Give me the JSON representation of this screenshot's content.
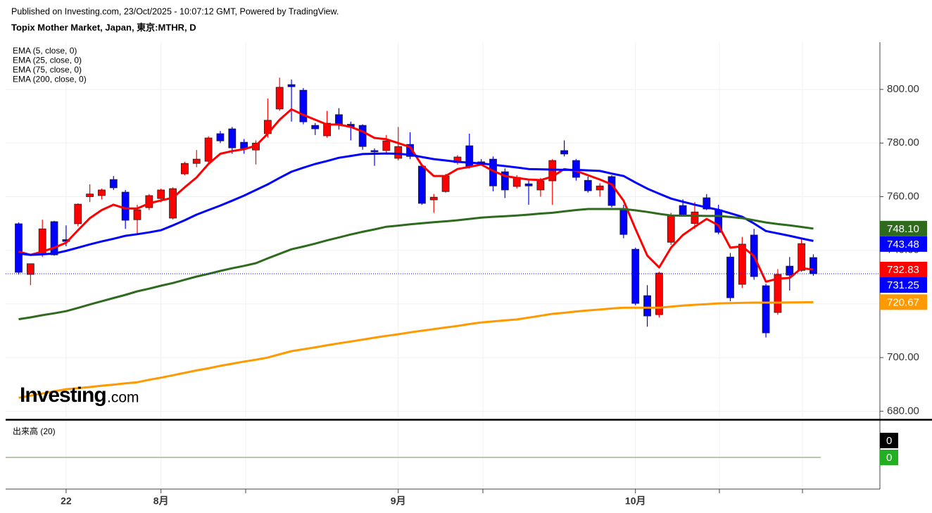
{
  "header": {
    "published": "Published on Investing.com, 23/Oct/2025 - 10:07:12 GMT, Powered by TradingView.",
    "logo": "Investing",
    "logo_suffix": ".com"
  },
  "chart_data": [
    {
      "type": "candlestick",
      "title": "Topix Mother Market, Japan, 東京:MTHR, D",
      "categories": [
        null,
        null,
        null,
        null,
        "22",
        null,
        null,
        null,
        null,
        null,
        null,
        null,
        "8月",
        null,
        null,
        null,
        null,
        null,
        null,
        null,
        null,
        null,
        null,
        null,
        null,
        null,
        null,
        null,
        null,
        null,
        null,
        null,
        "9月",
        null,
        null,
        null,
        null,
        null,
        null,
        null,
        null,
        null,
        null,
        null,
        null,
        null,
        null,
        null,
        null,
        null,
        null,
        null,
        "10月",
        null,
        null,
        null,
        null,
        null,
        null,
        null,
        null,
        null,
        null,
        null,
        null,
        null,
        null,
        null
      ],
      "open": [
        749.9,
        731,
        738.3,
        750.7,
        744,
        749.9,
        760,
        760.4,
        766.4,
        761.7,
        751.4,
        755.9,
        759.3,
        752,
        768.5,
        772.4,
        773.2,
        783.5,
        785.3,
        780.3,
        777.4,
        783.5,
        792.7,
        801.8,
        799.7,
        786.6,
        782.7,
        790.6,
        787,
        786.6,
        777.2,
        777.2,
        774.3,
        779.5,
        771.4,
        758.8,
        761.9,
        772.7,
        779,
        773,
        774,
        769.3,
        763.8,
        764.8,
        762.5,
        765.9,
        777.2,
        773.5,
        766.1,
        762.5,
        767.5,
        755.4,
        740.4,
        723.1,
        716,
        743,
        756.7,
        750,
        759.6,
        755.1,
        737.5,
        727.3,
        745.7,
        726.8,
        716.8,
        734.1,
        732.5,
        737.3
      ],
      "high": [
        750.4,
        735,
        751.4,
        751,
        749.3,
        757.5,
        764.6,
        763,
        767.7,
        762.5,
        757,
        761,
        763,
        763.5,
        773,
        777.4,
        782.5,
        784.5,
        786,
        781.5,
        781,
        796.6,
        804.4,
        803.7,
        800.5,
        787.5,
        792,
        793,
        788,
        787,
        778,
        783,
        786,
        784,
        772,
        761,
        768.5,
        775.5,
        783.5,
        774,
        775,
        770.5,
        768,
        766,
        767,
        774,
        781,
        774,
        767.5,
        765,
        768,
        757,
        741,
        727,
        732,
        754,
        759,
        758,
        761,
        757,
        739,
        745,
        748,
        727.5,
        733,
        737.5,
        744.5,
        738.5
      ],
      "low": [
        731,
        727,
        737.5,
        738,
        741.5,
        749,
        758,
        759,
        762.5,
        748,
        746,
        755,
        758,
        751.5,
        768,
        771,
        772,
        780,
        776,
        776,
        772,
        782,
        792,
        788,
        787,
        783,
        782,
        785,
        781,
        777.5,
        771.5,
        776,
        773.5,
        774,
        757,
        754,
        761.5,
        772,
        770.5,
        772,
        762,
        759.5,
        763,
        757,
        760,
        757,
        775,
        766,
        761.5,
        760,
        756,
        744.5,
        719.5,
        711.5,
        715,
        742,
        752.5,
        748,
        755,
        746,
        721,
        726,
        729,
        707.5,
        716,
        725,
        732,
        730.5
      ],
      "close": [
        731.8,
        735,
        748,
        738.3,
        743.3,
        757.2,
        761,
        762.5,
        763.3,
        751.2,
        755.1,
        760.4,
        762.5,
        763,
        772.4,
        774,
        781.9,
        780.8,
        778.2,
        778,
        780,
        788.5,
        800.8,
        801,
        787.9,
        785.3,
        787.4,
        786.6,
        786,
        778.7,
        776.7,
        780.8,
        778.7,
        775,
        757.5,
        759.8,
        767.7,
        774.8,
        771.1,
        772.8,
        764,
        762.5,
        767.2,
        764,
        765.9,
        773.5,
        775.9,
        767.2,
        762.2,
        764,
        756.7,
        745.9,
        720.2,
        715.5,
        731.5,
        753,
        753.3,
        754.3,
        755.4,
        746.7,
        722.3,
        742.3,
        730.2,
        709.2,
        731,
        730.7,
        742.5,
        731.25
      ],
      "up_color": "#ff0000",
      "down_color": "#0000ff",
      "series": [
        {
          "name": "EMA (5, close, 0)",
          "color": "#ff0000",
          "values": [
            739.5,
            738.3,
            739.5,
            741,
            742.8,
            747.5,
            752,
            755,
            757,
            755.6,
            755.6,
            757.5,
            758.6,
            759.6,
            763.5,
            767.2,
            772.2,
            776,
            777,
            777.7,
            779,
            783.5,
            788.7,
            792.6,
            790.5,
            788.7,
            786.9,
            786.9,
            786,
            784.3,
            781.9,
            781.4,
            780,
            778.5,
            771.7,
            767.7,
            767.7,
            770.3,
            771.1,
            772,
            769.6,
            767.7,
            767,
            766.4,
            766.2,
            767.5,
            770.3,
            769.6,
            768,
            766.4,
            764.6,
            758.5,
            748,
            738,
            733.6,
            741,
            745.7,
            748.8,
            751.7,
            749.3,
            741,
            741.5,
            737.8,
            728.3,
            729.4,
            729.7,
            733.3,
            732.83
          ]
        },
        {
          "name": "EMA (25, close, 0)",
          "color": "#0000ff",
          "values": [
            738.8,
            738.3,
            738.5,
            738.8,
            739.8,
            741,
            742.2,
            743.3,
            744.3,
            745.4,
            746,
            746.7,
            747.5,
            749.3,
            751.2,
            753.3,
            755,
            756.7,
            758.5,
            760.4,
            762.5,
            764.6,
            767,
            769.3,
            770.8,
            772.2,
            773.3,
            774.5,
            775.2,
            775.9,
            776,
            776.1,
            776,
            775.6,
            774.8,
            774,
            773.5,
            773,
            772.7,
            772.4,
            771.9,
            771.4,
            770.9,
            770.3,
            770.2,
            770.1,
            770,
            770,
            769.8,
            769.6,
            768.6,
            767.7,
            765.3,
            763,
            761.1,
            759.3,
            758.1,
            757,
            756,
            755.1,
            753.8,
            752.5,
            750,
            747.2,
            746.3,
            745.4,
            744.4,
            743.48
          ]
        },
        {
          "name": "EMA (75, close, 0)",
          "color": "#2e6b1e",
          "values": [
            714.3,
            715,
            715.8,
            716.5,
            717.3,
            718.5,
            719.8,
            721,
            722.2,
            723.4,
            724.7,
            725.7,
            726.8,
            727.8,
            729,
            730.2,
            731.2,
            732.3,
            733.3,
            734.2,
            735.2,
            737,
            738.7,
            740.4,
            741.4,
            742.5,
            743.7,
            744.8,
            745.9,
            746.9,
            747.8,
            748.8,
            749.2,
            749.7,
            750.1,
            750.5,
            750.8,
            751.2,
            751.7,
            752.2,
            752.5,
            752.7,
            753,
            753.3,
            753.7,
            754,
            754.5,
            755,
            755.4,
            755.4,
            755.4,
            755.4,
            754.9,
            754.3,
            753.6,
            753,
            752.9,
            752.9,
            752.8,
            752.8,
            752.4,
            752,
            751.2,
            750.4,
            749.8,
            749.3,
            748.7,
            748.1
          ],
          "value_labels": [
            null,
            null,
            null,
            null,
            null,
            null,
            null,
            null,
            null,
            null,
            null,
            null,
            null,
            null,
            null,
            null,
            null,
            null,
            null,
            null,
            null,
            null,
            null,
            null,
            null,
            null,
            null,
            null,
            null,
            null,
            null,
            null,
            null,
            null,
            null,
            null,
            null,
            null,
            null,
            null,
            null,
            null,
            null,
            null,
            null,
            null,
            null,
            null,
            null,
            null,
            null,
            null,
            null,
            null,
            null,
            null,
            null,
            null,
            null,
            null,
            null,
            null,
            null,
            null,
            null,
            null,
            null,
            "748.10"
          ]
        },
        {
          "name": "EMA (200, close, 0)",
          "color": "#ff9900",
          "values": [
            685,
            685.8,
            686.6,
            687.4,
            688.2,
            688.6,
            689,
            689.5,
            689.9,
            690.4,
            690.8,
            691.7,
            692.5,
            693.4,
            694.3,
            695.2,
            696,
            696.9,
            697.7,
            698.5,
            699.2,
            700,
            701.2,
            702.4,
            703.1,
            703.8,
            704.6,
            705.3,
            706,
            706.7,
            707.4,
            708.1,
            708.7,
            709.4,
            710,
            710.6,
            711.2,
            711.8,
            712.5,
            713.1,
            713.5,
            713.9,
            714.2,
            714.9,
            715.6,
            716.3,
            716.7,
            717.2,
            717.6,
            717.9,
            718.3,
            718.6,
            718.6,
            718.6,
            718.6,
            719,
            719.4,
            719.7,
            719.9,
            720.2,
            720.3,
            720.4,
            720.5,
            720.5,
            720.5,
            720.55,
            720.6,
            720.67
          ]
        }
      ],
      "ylim": [
        677.2,
        817.6
      ],
      "yticks": [
        {
          "value": 680,
          "label": "680.00"
        },
        {
          "value": 700,
          "label": "700.00"
        },
        {
          "value": 720,
          "label": "720.00"
        },
        {
          "value": 740,
          "label": "740.00"
        },
        {
          "value": 760,
          "label": "760.00"
        },
        {
          "value": 780,
          "label": "780.00"
        },
        {
          "value": 800,
          "label": "800.00"
        }
      ],
      "grid": true
    },
    {
      "type": "volume",
      "title": "出来高 (20)",
      "series": [
        {
          "color": "#000000",
          "values": [
            0
          ]
        },
        {
          "color": "#22b022",
          "values": [
            0
          ]
        }
      ]
    }
  ]
}
